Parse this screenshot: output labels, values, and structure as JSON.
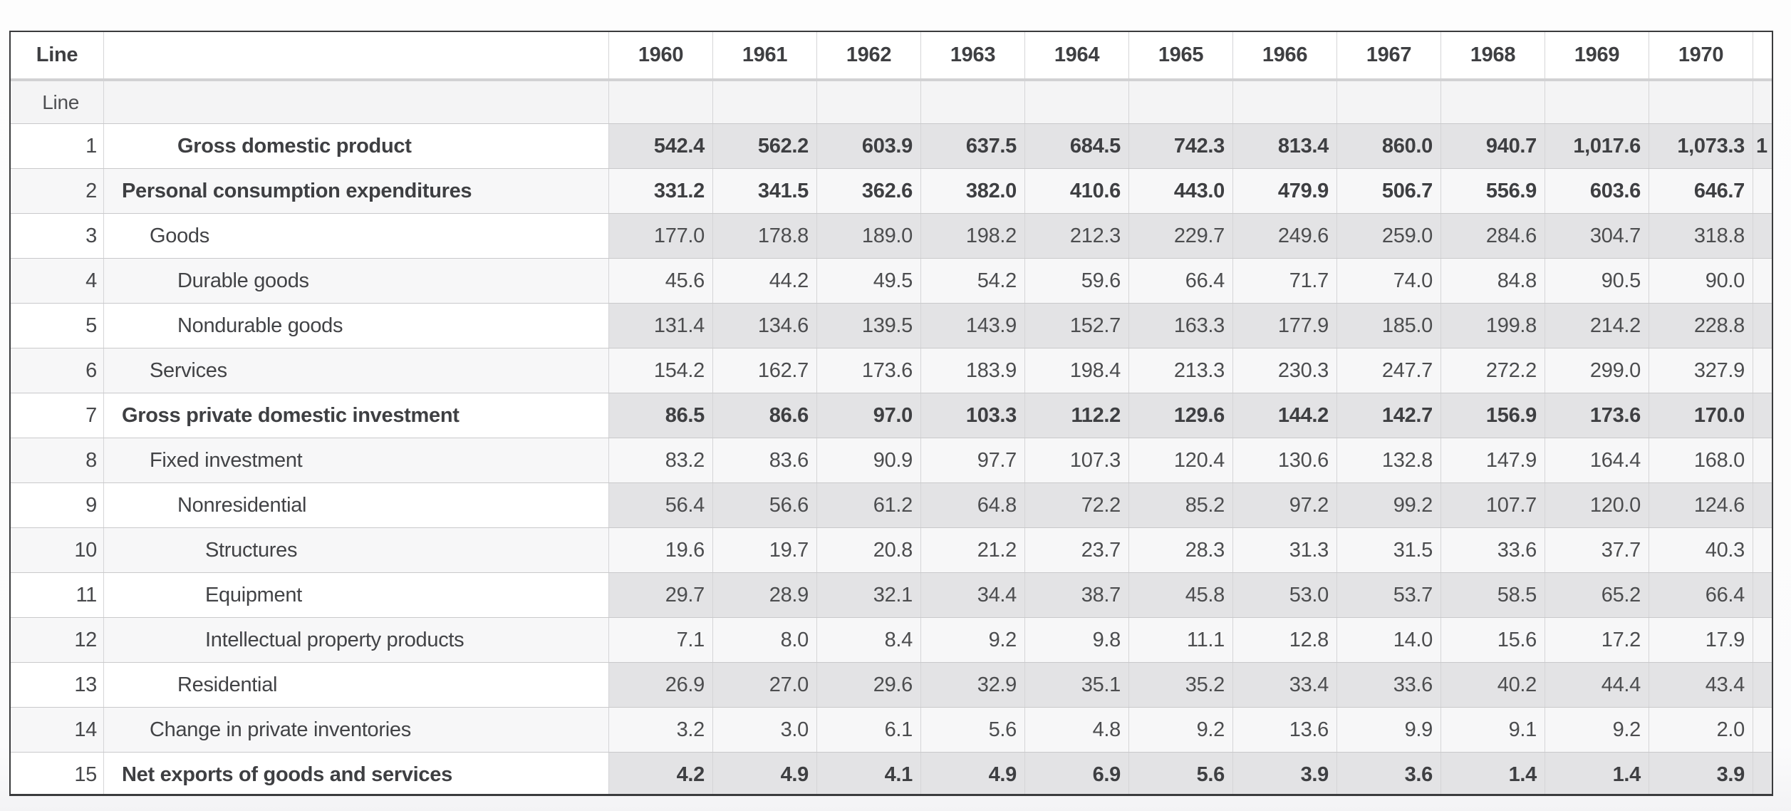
{
  "colors": {
    "outer_border": "#3a3b3d",
    "grid_vertical": "#d5d5d7",
    "grid_horizontal": "#c9c9cb",
    "header_shadow_band": "#d1d1d3",
    "shaded_numeric_cell": "#e3e3e5",
    "even_row_bg": "#f7f7f8",
    "odd_row_bg": "#ffffff",
    "subheader_bg": "#f4f4f5",
    "header_bg": "#ffffff",
    "text_primary": "#424346",
    "text_numbers": "#4c4d4f",
    "page_bg": "#fbfbfc"
  },
  "table": {
    "header": {
      "line_label": "Line",
      "description_label": "",
      "years": [
        "1960",
        "1961",
        "1962",
        "1963",
        "1964",
        "1965",
        "1966",
        "1967",
        "1968",
        "1969",
        "1970"
      ],
      "clipped_column_label": ""
    },
    "subheader": {
      "line_label": "Line"
    },
    "rows": [
      {
        "line": "1",
        "label": "Gross domestic product",
        "bold": true,
        "indent": 2,
        "values": [
          "542.4",
          "562.2",
          "603.9",
          "637.5",
          "684.5",
          "742.3",
          "813.4",
          "860.0",
          "940.7",
          "1,017.6",
          "1,073.3"
        ],
        "partial": "1"
      },
      {
        "line": "2",
        "label": "Personal consumption expenditures",
        "bold": true,
        "indent": 0,
        "values": [
          "331.2",
          "341.5",
          "362.6",
          "382.0",
          "410.6",
          "443.0",
          "479.9",
          "506.7",
          "556.9",
          "603.6",
          "646.7"
        ],
        "partial": ""
      },
      {
        "line": "3",
        "label": "Goods",
        "bold": false,
        "indent": 1,
        "values": [
          "177.0",
          "178.8",
          "189.0",
          "198.2",
          "212.3",
          "229.7",
          "249.6",
          "259.0",
          "284.6",
          "304.7",
          "318.8"
        ],
        "partial": ""
      },
      {
        "line": "4",
        "label": "Durable goods",
        "bold": false,
        "indent": 2,
        "values": [
          "45.6",
          "44.2",
          "49.5",
          "54.2",
          "59.6",
          "66.4",
          "71.7",
          "74.0",
          "84.8",
          "90.5",
          "90.0"
        ],
        "partial": ""
      },
      {
        "line": "5",
        "label": "Nondurable goods",
        "bold": false,
        "indent": 2,
        "values": [
          "131.4",
          "134.6",
          "139.5",
          "143.9",
          "152.7",
          "163.3",
          "177.9",
          "185.0",
          "199.8",
          "214.2",
          "228.8"
        ],
        "partial": ""
      },
      {
        "line": "6",
        "label": "Services",
        "bold": false,
        "indent": 1,
        "values": [
          "154.2",
          "162.7",
          "173.6",
          "183.9",
          "198.4",
          "213.3",
          "230.3",
          "247.7",
          "272.2",
          "299.0",
          "327.9"
        ],
        "partial": ""
      },
      {
        "line": "7",
        "label": "Gross private domestic investment",
        "bold": true,
        "indent": 0,
        "values": [
          "86.5",
          "86.6",
          "97.0",
          "103.3",
          "112.2",
          "129.6",
          "144.2",
          "142.7",
          "156.9",
          "173.6",
          "170.0"
        ],
        "partial": ""
      },
      {
        "line": "8",
        "label": "Fixed investment",
        "bold": false,
        "indent": 1,
        "values": [
          "83.2",
          "83.6",
          "90.9",
          "97.7",
          "107.3",
          "120.4",
          "130.6",
          "132.8",
          "147.9",
          "164.4",
          "168.0"
        ],
        "partial": ""
      },
      {
        "line": "9",
        "label": "Nonresidential",
        "bold": false,
        "indent": 2,
        "values": [
          "56.4",
          "56.6",
          "61.2",
          "64.8",
          "72.2",
          "85.2",
          "97.2",
          "99.2",
          "107.7",
          "120.0",
          "124.6"
        ],
        "partial": ""
      },
      {
        "line": "10",
        "label": "Structures",
        "bold": false,
        "indent": 3,
        "values": [
          "19.6",
          "19.7",
          "20.8",
          "21.2",
          "23.7",
          "28.3",
          "31.3",
          "31.5",
          "33.6",
          "37.7",
          "40.3"
        ],
        "partial": ""
      },
      {
        "line": "11",
        "label": "Equipment",
        "bold": false,
        "indent": 3,
        "values": [
          "29.7",
          "28.9",
          "32.1",
          "34.4",
          "38.7",
          "45.8",
          "53.0",
          "53.7",
          "58.5",
          "65.2",
          "66.4"
        ],
        "partial": ""
      },
      {
        "line": "12",
        "label": "Intellectual property products",
        "bold": false,
        "indent": 3,
        "values": [
          "7.1",
          "8.0",
          "8.4",
          "9.2",
          "9.8",
          "11.1",
          "12.8",
          "14.0",
          "15.6",
          "17.2",
          "17.9"
        ],
        "partial": ""
      },
      {
        "line": "13",
        "label": "Residential",
        "bold": false,
        "indent": 2,
        "values": [
          "26.9",
          "27.0",
          "29.6",
          "32.9",
          "35.1",
          "35.2",
          "33.4",
          "33.6",
          "40.2",
          "44.4",
          "43.4"
        ],
        "partial": ""
      },
      {
        "line": "14",
        "label": "Change in private inventories",
        "bold": false,
        "indent": 1,
        "values": [
          "3.2",
          "3.0",
          "6.1",
          "5.6",
          "4.8",
          "9.2",
          "13.6",
          "9.9",
          "9.1",
          "9.2",
          "2.0"
        ],
        "partial": ""
      },
      {
        "line": "15",
        "label": "Net exports of goods and services",
        "bold": true,
        "indent": 0,
        "values": [
          "4.2",
          "4.9",
          "4.1",
          "4.9",
          "6.9",
          "5.6",
          "3.9",
          "3.6",
          "1.4",
          "1.4",
          "3.9"
        ],
        "partial": ""
      }
    ]
  }
}
